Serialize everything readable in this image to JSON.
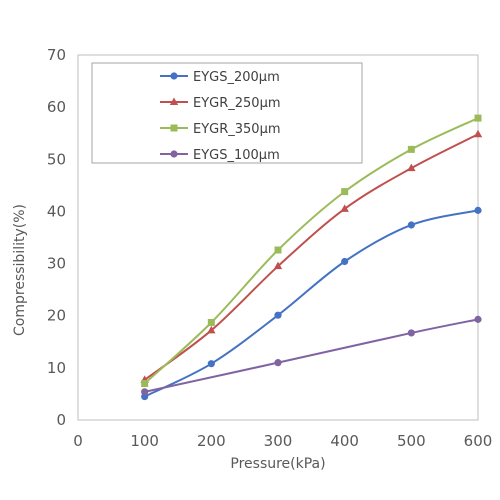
{
  "chart_data": {
    "type": "line",
    "title": "",
    "xlabel": "Pressure(kPa)",
    "ylabel": "Compressibility(%)",
    "xlim": [
      0,
      600
    ],
    "ylim": [
      0,
      70
    ],
    "xticks": [
      0,
      100,
      200,
      300,
      400,
      500,
      600
    ],
    "yticks": [
      0,
      10,
      20,
      30,
      40,
      50,
      60,
      70
    ],
    "grid": false,
    "legend_position": "top-left",
    "series": [
      {
        "name": "EYGS_200μm",
        "color": "#4472C4",
        "marker": "circle",
        "x": [
          100,
          200,
          300,
          400,
          500,
          600
        ],
        "y": [
          4.5,
          10.8,
          20.1,
          30.4,
          37.4,
          40.2
        ]
      },
      {
        "name": "EYGR_250μm",
        "color": "#C0504D",
        "marker": "triangle",
        "x": [
          100,
          200,
          300,
          400,
          500,
          600
        ],
        "y": [
          7.7,
          17.2,
          29.5,
          40.5,
          48.3,
          54.8
        ]
      },
      {
        "name": "EYGR_350μm",
        "color": "#9BBB59",
        "marker": "square",
        "x": [
          100,
          200,
          300,
          400,
          500,
          600
        ],
        "y": [
          7.0,
          18.7,
          32.6,
          43.8,
          51.9,
          57.9
        ]
      },
      {
        "name": "EYGS_100μm",
        "color": "#8064A2",
        "marker": "circle",
        "x": [
          100,
          300,
          500,
          600
        ],
        "y": [
          5.4,
          11.0,
          16.7,
          19.3
        ]
      }
    ]
  }
}
